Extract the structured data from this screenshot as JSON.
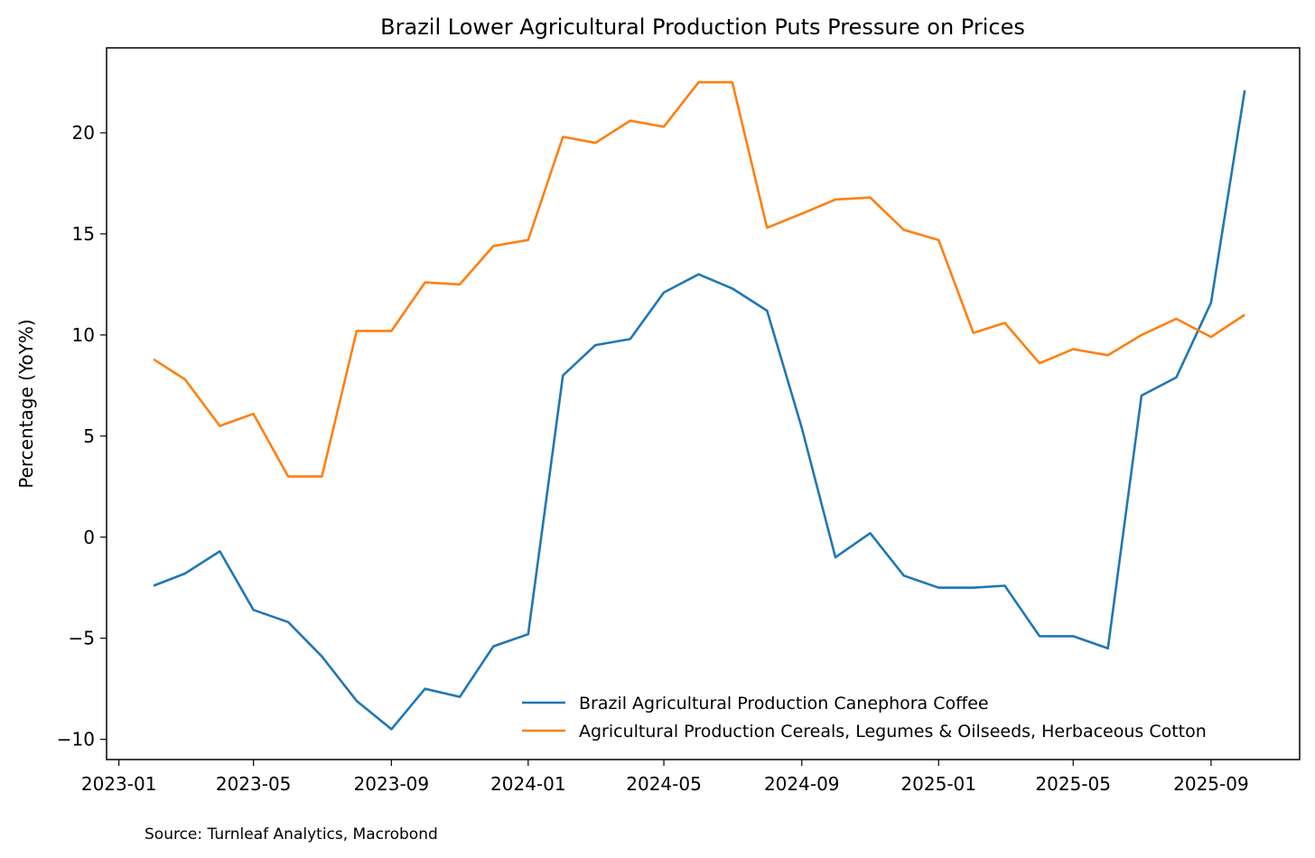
{
  "chart_data": {
    "type": "line",
    "title": "Brazil Lower Agricultural Production Puts Pressure on Prices",
    "xlabel": "",
    "ylabel": "Percentage (YoY%)",
    "x": [
      "2023-02",
      "2023-03",
      "2023-04",
      "2023-05",
      "2023-06",
      "2023-07",
      "2023-08",
      "2023-09",
      "2023-10",
      "2023-11",
      "2023-12",
      "2024-01",
      "2024-02",
      "2024-03",
      "2024-04",
      "2024-05",
      "2024-06",
      "2024-07",
      "2024-08",
      "2024-09",
      "2024-10",
      "2024-11",
      "2024-12",
      "2025-01",
      "2025-02",
      "2025-03",
      "2025-04",
      "2025-05",
      "2025-06",
      "2025-07",
      "2025-08",
      "2025-09",
      "2025-10"
    ],
    "xticks": [
      "2023-01",
      "2023-05",
      "2023-09",
      "2024-01",
      "2024-05",
      "2024-09",
      "2025-01",
      "2025-05",
      "2025-09"
    ],
    "yticks": [
      -10,
      -5,
      0,
      5,
      10,
      15,
      20
    ],
    "ylim": [
      -11.0,
      24.2
    ],
    "xlim": [
      "2022-12-21",
      "2025-11-19"
    ],
    "legend_position": "lower-right",
    "series": [
      {
        "name": "Brazil Agricultural Production Canephora Coffee",
        "color": "#1f77b4",
        "values": [
          -2.4,
          -1.8,
          -0.7,
          -3.6,
          -4.2,
          -5.9,
          -8.1,
          -9.5,
          -7.5,
          -7.9,
          -5.4,
          -4.8,
          8.0,
          9.5,
          9.8,
          12.1,
          13.0,
          12.3,
          11.2,
          5.4,
          -1.0,
          0.2,
          -1.9,
          -2.5,
          -2.5,
          -2.4,
          -4.9,
          -4.9,
          -5.5,
          7.0,
          7.9,
          11.6,
          22.1
        ]
      },
      {
        "name": "Agricultural Production Cereals, Legumes & Oilseeds, Herbaceous Cotton",
        "color": "#ff7f0e",
        "values": [
          8.8,
          7.8,
          5.5,
          6.1,
          3.0,
          3.0,
          10.2,
          10.2,
          12.6,
          12.5,
          14.4,
          14.7,
          19.8,
          19.5,
          20.6,
          20.3,
          22.5,
          22.5,
          15.3,
          16.0,
          16.7,
          16.8,
          15.2,
          14.7,
          10.1,
          10.6,
          8.6,
          9.3,
          9.0,
          10.0,
          10.8,
          9.9,
          11.0
        ]
      }
    ],
    "source": "Source: Turnleaf Analytics, Macrobond"
  }
}
